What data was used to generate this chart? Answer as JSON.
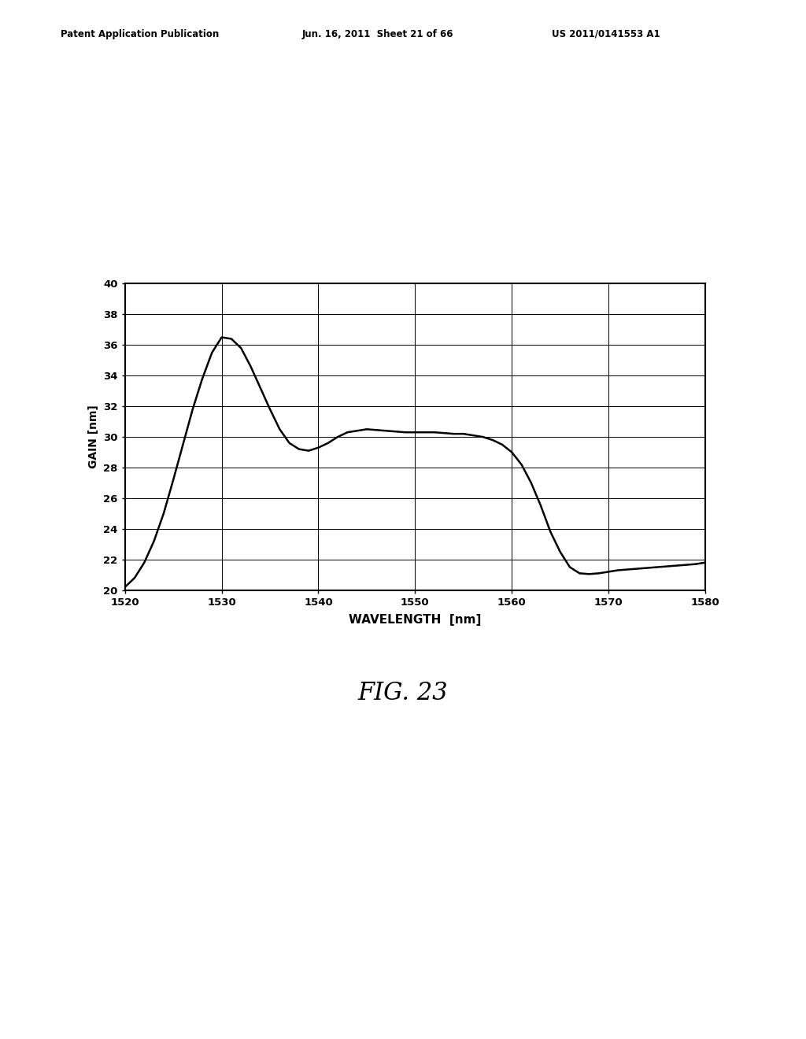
{
  "fig_label": "FIG. 23",
  "xlabel": "WAVELENGTH  [nm]",
  "ylabel": "GAIN [nm]",
  "xlim": [
    1520,
    1580
  ],
  "ylim": [
    20,
    40
  ],
  "xticks": [
    1520,
    1530,
    1540,
    1550,
    1560,
    1570,
    1580
  ],
  "yticks": [
    20,
    22,
    24,
    26,
    28,
    30,
    32,
    34,
    36,
    38,
    40
  ],
  "curve_color": "#000000",
  "background_color": "#ffffff",
  "header_left": "Patent Application Publication",
  "header_mid": "Jun. 16, 2011  Sheet 21 of 66",
  "header_right": "US 2011/0141553 A1",
  "curve_x": [
    1520,
    1521,
    1522,
    1523,
    1524,
    1525,
    1526,
    1527,
    1528,
    1529,
    1530,
    1531,
    1532,
    1533,
    1534,
    1535,
    1536,
    1537,
    1538,
    1539,
    1540,
    1541,
    1542,
    1543,
    1544,
    1545,
    1546,
    1547,
    1548,
    1549,
    1550,
    1551,
    1552,
    1553,
    1554,
    1555,
    1556,
    1557,
    1558,
    1559,
    1560,
    1561,
    1562,
    1563,
    1564,
    1565,
    1566,
    1567,
    1568,
    1569,
    1570,
    1571,
    1572,
    1573,
    1574,
    1575,
    1576,
    1577,
    1578,
    1579,
    1580
  ],
  "curve_y": [
    20.2,
    20.8,
    21.8,
    23.2,
    25.0,
    27.2,
    29.5,
    31.8,
    33.8,
    35.5,
    36.5,
    36.4,
    35.8,
    34.6,
    33.2,
    31.8,
    30.5,
    29.6,
    29.2,
    29.1,
    29.3,
    29.6,
    30.0,
    30.3,
    30.4,
    30.5,
    30.45,
    30.4,
    30.35,
    30.3,
    30.3,
    30.3,
    30.3,
    30.25,
    30.2,
    30.2,
    30.1,
    30.0,
    29.8,
    29.5,
    29.0,
    28.2,
    27.0,
    25.5,
    23.8,
    22.5,
    21.5,
    21.1,
    21.05,
    21.1,
    21.2,
    21.3,
    21.35,
    21.4,
    21.45,
    21.5,
    21.55,
    21.6,
    21.65,
    21.7,
    21.8
  ]
}
